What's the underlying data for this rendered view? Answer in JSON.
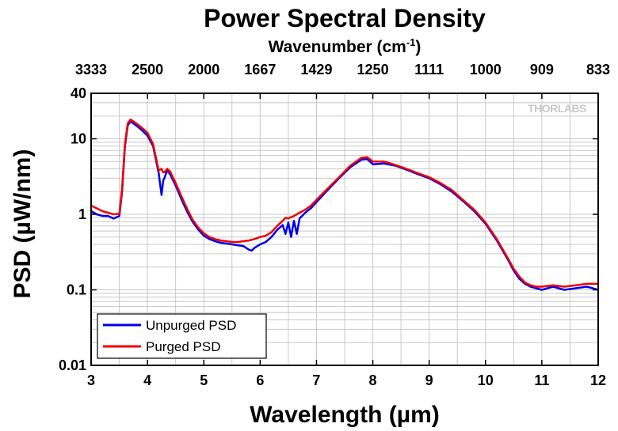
{
  "chart_data": {
    "type": "line",
    "title": "Power Spectral Density",
    "top_axis_label": "Wavenumber (cm",
    "top_axis_label_sup": "-1",
    "top_axis_label_end": ")",
    "top_ticks": [
      {
        "wl": 3.0,
        "label": "3333"
      },
      {
        "wl": 4.0,
        "label": "2500"
      },
      {
        "wl": 5.0,
        "label": "2000"
      },
      {
        "wl": 6.0,
        "label": "1667"
      },
      {
        "wl": 7.0,
        "label": "1429"
      },
      {
        "wl": 8.0,
        "label": "1250"
      },
      {
        "wl": 9.0,
        "label": "1111"
      },
      {
        "wl": 10.0,
        "label": "1000"
      },
      {
        "wl": 11.0,
        "label": "909"
      },
      {
        "wl": 12.0,
        "label": "833"
      }
    ],
    "xlabel": "Wavelength (µm)",
    "ylabel": "PSD (µW/nm)",
    "xlim": [
      3,
      12
    ],
    "ylim": [
      0.01,
      40
    ],
    "y_scale": "log",
    "grid": true,
    "x_ticks": [
      3,
      4,
      5,
      6,
      7,
      8,
      9,
      10,
      11,
      12
    ],
    "x_tick_labels": [
      "3",
      "4",
      "5",
      "6",
      "7",
      "8",
      "9",
      "10",
      "11",
      "12"
    ],
    "y_ticks": [
      0.01,
      0.1,
      1,
      10,
      40
    ],
    "y_tick_labels": [
      "0.01",
      "0.1",
      "1",
      "10",
      "40"
    ],
    "legend_position": "bottom-left",
    "watermark": "THORLABS",
    "series": [
      {
        "name": "Unpurged PSD",
        "color": "#0000ee",
        "x": [
          3.0,
          3.1,
          3.2,
          3.3,
          3.4,
          3.5,
          3.55,
          3.6,
          3.65,
          3.7,
          3.8,
          3.9,
          4.0,
          4.1,
          4.2,
          4.25,
          4.28,
          4.3,
          4.35,
          4.4,
          4.5,
          4.6,
          4.7,
          4.8,
          4.9,
          5.0,
          5.1,
          5.2,
          5.3,
          5.4,
          5.5,
          5.6,
          5.7,
          5.8,
          5.85,
          5.9,
          6.0,
          6.1,
          6.2,
          6.3,
          6.4,
          6.45,
          6.5,
          6.55,
          6.6,
          6.65,
          6.7,
          6.8,
          6.9,
          7.0,
          7.2,
          7.4,
          7.6,
          7.8,
          7.9,
          8.0,
          8.2,
          8.4,
          8.6,
          8.8,
          9.0,
          9.2,
          9.4,
          9.6,
          9.8,
          10.0,
          10.2,
          10.4,
          10.5,
          10.6,
          10.7,
          10.8,
          10.9,
          11.0,
          11.2,
          11.4,
          11.6,
          11.8,
          12.0
        ],
        "values": [
          1.1,
          1.0,
          0.95,
          0.95,
          0.88,
          0.95,
          2.0,
          8.0,
          15.0,
          17.0,
          15.0,
          13.0,
          11.0,
          8.0,
          3.5,
          1.8,
          2.8,
          3.0,
          3.8,
          3.4,
          2.4,
          1.6,
          1.1,
          0.8,
          0.63,
          0.52,
          0.47,
          0.44,
          0.42,
          0.41,
          0.4,
          0.39,
          0.38,
          0.34,
          0.33,
          0.36,
          0.4,
          0.43,
          0.5,
          0.62,
          0.72,
          0.55,
          0.78,
          0.5,
          0.82,
          0.55,
          0.88,
          1.05,
          1.2,
          1.45,
          2.1,
          3.0,
          4.2,
          5.3,
          5.4,
          4.6,
          4.7,
          4.4,
          3.9,
          3.4,
          3.0,
          2.5,
          2.0,
          1.5,
          1.1,
          0.75,
          0.45,
          0.25,
          0.18,
          0.14,
          0.12,
          0.11,
          0.105,
          0.1,
          0.11,
          0.1,
          0.105,
          0.11,
          0.1
        ]
      },
      {
        "name": "Purged PSD",
        "color": "#ee0000",
        "x": [
          3.0,
          3.1,
          3.2,
          3.3,
          3.4,
          3.5,
          3.55,
          3.6,
          3.65,
          3.7,
          3.8,
          3.9,
          4.0,
          4.1,
          4.2,
          4.25,
          4.28,
          4.3,
          4.35,
          4.4,
          4.5,
          4.6,
          4.7,
          4.8,
          4.9,
          5.0,
          5.1,
          5.2,
          5.3,
          5.4,
          5.5,
          5.6,
          5.7,
          5.8,
          5.85,
          5.9,
          6.0,
          6.1,
          6.2,
          6.3,
          6.4,
          6.45,
          6.5,
          6.55,
          6.6,
          6.65,
          6.7,
          6.8,
          6.9,
          7.0,
          7.2,
          7.4,
          7.6,
          7.8,
          7.9,
          8.0,
          8.2,
          8.4,
          8.6,
          8.8,
          9.0,
          9.2,
          9.4,
          9.6,
          9.8,
          10.0,
          10.2,
          10.4,
          10.5,
          10.6,
          10.7,
          10.8,
          10.9,
          11.0,
          11.2,
          11.4,
          11.6,
          11.8,
          12.0
        ],
        "values": [
          1.3,
          1.2,
          1.1,
          1.05,
          1.0,
          1.02,
          2.2,
          8.5,
          16.0,
          18.0,
          16.0,
          14.0,
          12.0,
          8.5,
          3.8,
          4.0,
          3.6,
          3.6,
          4.0,
          3.7,
          2.6,
          1.75,
          1.2,
          0.85,
          0.67,
          0.56,
          0.5,
          0.47,
          0.45,
          0.44,
          0.43,
          0.43,
          0.44,
          0.45,
          0.46,
          0.47,
          0.5,
          0.52,
          0.58,
          0.7,
          0.82,
          0.9,
          0.88,
          0.92,
          0.95,
          1.0,
          1.05,
          1.15,
          1.3,
          1.55,
          2.2,
          3.1,
          4.4,
          5.6,
          5.7,
          5.0,
          5.0,
          4.5,
          4.0,
          3.5,
          3.1,
          2.6,
          2.1,
          1.55,
          1.15,
          0.78,
          0.47,
          0.26,
          0.19,
          0.15,
          0.125,
          0.115,
          0.11,
          0.11,
          0.115,
          0.11,
          0.115,
          0.12,
          0.12
        ]
      }
    ]
  }
}
